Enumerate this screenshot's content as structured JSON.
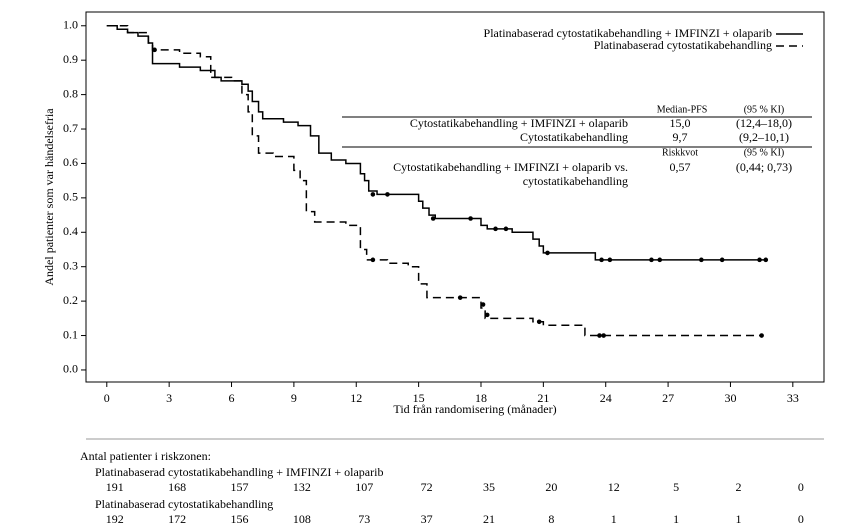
{
  "chart_data": {
    "type": "line",
    "step": "post",
    "x_label": "Tid från randomisering (månader)",
    "y_label": "Andel patienter som var händelsefria",
    "xlim": [
      -1,
      34.5
    ],
    "ylim": [
      -0.035,
      1.04
    ],
    "xticks": [
      0,
      3,
      6,
      9,
      12,
      15,
      18,
      21,
      24,
      27,
      30,
      33
    ],
    "yticks": [
      {
        "value": 0,
        "label": "0.0"
      },
      0.1,
      0.2,
      0.3,
      0.4,
      0.5,
      0.6,
      0.7,
      0.8,
      0.9,
      {
        "value": 1,
        "label": "1.0"
      }
    ],
    "series": [
      {
        "name": "Platinabaserad cytostatikabehandling + IMFINZI + olaparib",
        "color": "#000000",
        "line_style": "solid",
        "x": [
          0,
          0.5,
          1,
          1.5,
          2,
          2.2,
          3.5,
          4.5,
          5.2,
          5.5,
          6.5,
          6.8,
          7.0,
          7.3,
          7.5,
          8.5,
          9.2,
          9.8,
          10.2,
          10.8,
          11.5,
          12.2,
          12.4,
          12.6,
          13.0,
          15.0,
          15.2,
          15.5,
          15.8,
          18.0,
          18.3,
          19.5,
          20.5,
          20.8,
          21.0,
          23.5,
          31.7
        ],
        "y": [
          1.0,
          0.99,
          0.98,
          0.97,
          0.95,
          0.89,
          0.88,
          0.87,
          0.85,
          0.84,
          0.83,
          0.81,
          0.78,
          0.75,
          0.73,
          0.72,
          0.71,
          0.68,
          0.63,
          0.61,
          0.6,
          0.57,
          0.55,
          0.52,
          0.51,
          0.49,
          0.47,
          0.45,
          0.44,
          0.42,
          0.41,
          0.4,
          0.38,
          0.36,
          0.34,
          0.32,
          0.32
        ],
        "censored_x": [
          12.8,
          13.5,
          15.7,
          17.5,
          18.7,
          19.2,
          21.2,
          23.8,
          24.2,
          26.2,
          26.6,
          28.6,
          29.6,
          31.4,
          31.7
        ],
        "censored_y": [
          0.51,
          0.51,
          0.44,
          0.44,
          0.41,
          0.41,
          0.34,
          0.32,
          0.32,
          0.32,
          0.32,
          0.32,
          0.32,
          0.32,
          0.32
        ]
      },
      {
        "name": "Platinabaserad cytostatikabehandling",
        "color": "#000000",
        "line_style": "dashed",
        "x": [
          0,
          1,
          2,
          2.2,
          3.5,
          4.5,
          5.0,
          6.0,
          6.5,
          6.8,
          7.0,
          7.3,
          8.0,
          9.0,
          9.3,
          9.6,
          10.0,
          11.5,
          12.2,
          12.5,
          13.5,
          14.5,
          15.0,
          15.4,
          17.8,
          18.0,
          18.2,
          20.5,
          21.0,
          23.0,
          31.5
        ],
        "y": [
          1.0,
          0.98,
          0.95,
          0.93,
          0.92,
          0.91,
          0.85,
          0.84,
          0.8,
          0.75,
          0.68,
          0.63,
          0.62,
          0.58,
          0.55,
          0.46,
          0.43,
          0.42,
          0.35,
          0.32,
          0.31,
          0.3,
          0.25,
          0.21,
          0.21,
          0.18,
          0.15,
          0.14,
          0.13,
          0.1,
          0.1
        ],
        "censored_x": [
          2.3,
          12.8,
          17.0,
          18.1,
          18.3,
          20.8,
          23.7,
          23.9,
          31.5
        ],
        "censored_y": [
          0.93,
          0.32,
          0.21,
          0.19,
          0.16,
          0.14,
          0.1,
          0.1,
          0.1
        ]
      }
    ],
    "legend": "top-right",
    "annotation_table": {
      "header1": [
        "Median-PFS",
        "(95 % KI)"
      ],
      "rows1": [
        [
          "Cytostatikabehandling + IMFINZI + olaparib",
          "15,0",
          "(12,4–18,0)"
        ],
        [
          "Cytostatikabehandling",
          "9,7",
          "(9,2–10,1)"
        ]
      ],
      "header2": [
        "Riskkvot",
        "(95 % KI)"
      ],
      "rows2": [
        [
          "Cytostatikabehandling + IMFINZI + olaparib vs.",
          "cytostatikabehandling",
          "0,57",
          "(0,44; 0,73)"
        ]
      ]
    },
    "risk_table": {
      "title": "Antal patienter i riskzonen:",
      "groups": [
        {
          "name": "Platinabaserad cytostatikabehandling + IMFINZI + olaparib",
          "counts": [
            "191",
            "168",
            "157",
            "132",
            "107",
            "72",
            "35",
            "20",
            "12",
            "5",
            "2",
            "0"
          ]
        },
        {
          "name": "Platinabaserad cytostatikabehandling",
          "counts": [
            "192",
            "172",
            "156",
            "108",
            "73",
            "37",
            "21",
            "8",
            "1",
            "1",
            "1",
            "0"
          ]
        }
      ]
    }
  }
}
